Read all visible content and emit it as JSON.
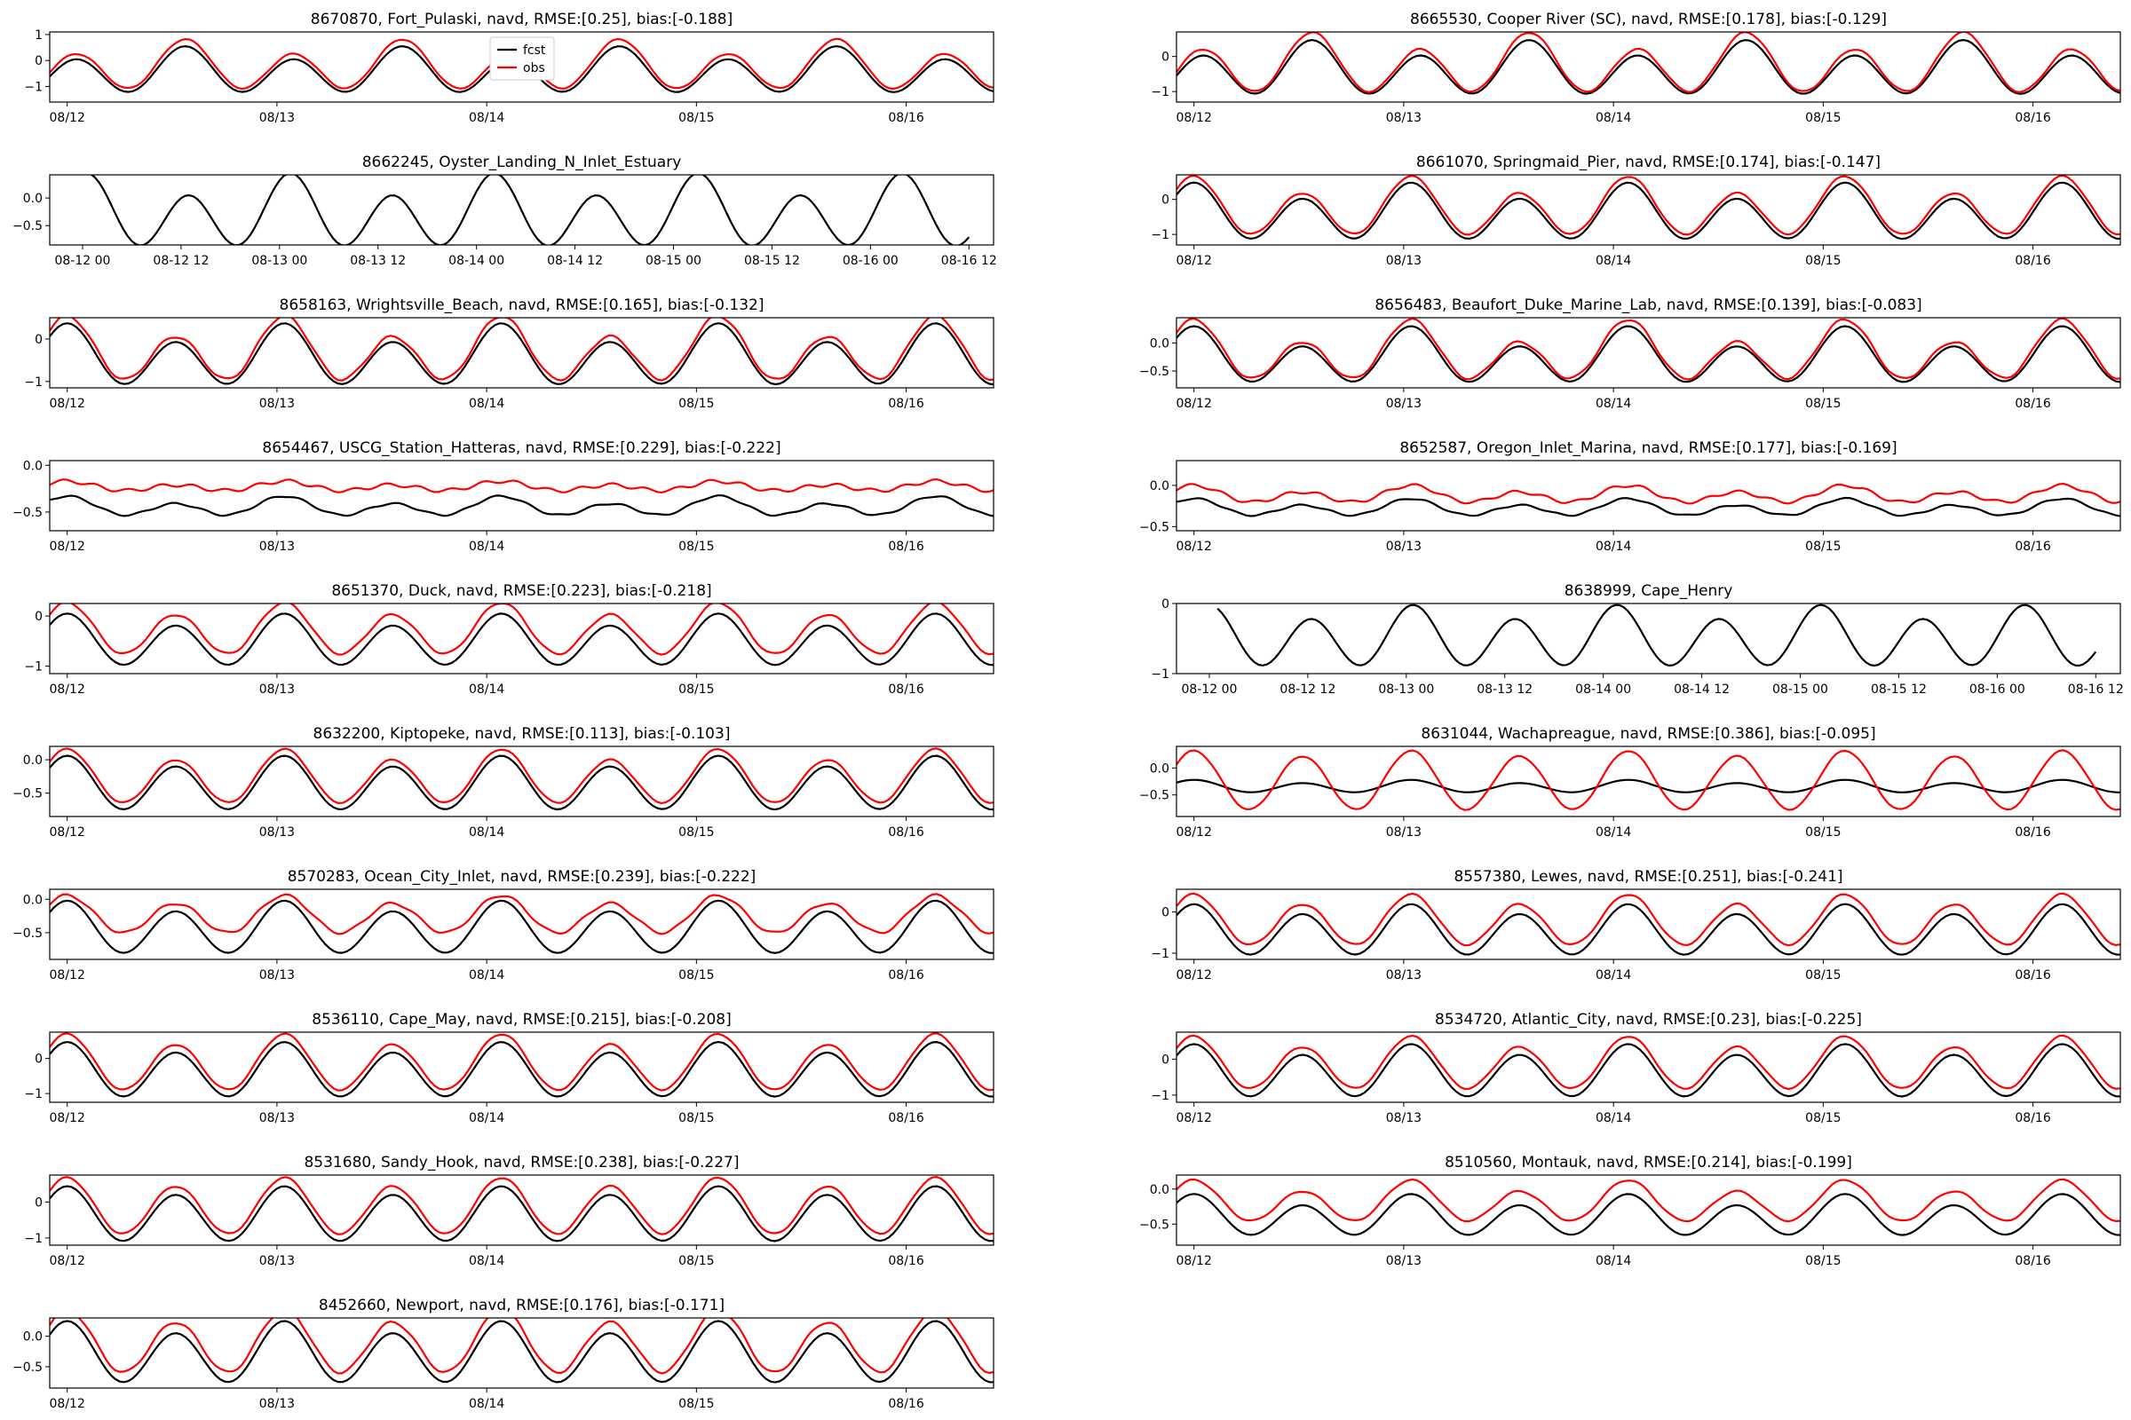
{
  "figure": {
    "legend": {
      "entries": [
        {
          "label": "fcst",
          "color": "#000000"
        },
        {
          "label": "obs",
          "color": "#ff0000"
        }
      ],
      "placement": "upper-right of first panel"
    }
  },
  "chart_data": [
    {
      "type": "line",
      "title": "8670870, Fort_Pulaski, navd, RMSE:[0.25], bias:[-0.188]",
      "ylim": [
        -1.6,
        1.1
      ],
      "yticks": [
        1,
        0,
        -1
      ],
      "ytick_labels": [
        "1",
        "0",
        "−1"
      ],
      "xticks": [
        0,
        24,
        48,
        72,
        96
      ],
      "xtick_labels": [
        "08/12",
        "08/13",
        "08/14",
        "08/15",
        "08/16"
      ],
      "x_range": [
        -2,
        106
      ],
      "phase": 13.5,
      "series": [
        {
          "name": "fcst",
          "color": "#000000",
          "mean": -0.45,
          "amp1": 0.75,
          "amp2": 0.25,
          "noise": 0
        },
        {
          "name": "obs",
          "color": "#ff0000",
          "mean": -0.26,
          "amp1": 0.8,
          "amp2": 0.28,
          "noise": 0.02
        }
      ]
    },
    {
      "type": "line",
      "title": "8665530, Cooper River (SC), navd, RMSE:[0.178], bias:[-0.129]",
      "ylim": [
        -1.3,
        0.7
      ],
      "yticks": [
        0,
        -1
      ],
      "ytick_labels": [
        "0",
        "−1"
      ],
      "xticks": [
        0,
        24,
        48,
        72,
        96
      ],
      "xtick_labels": [
        "08/12",
        "08/13",
        "08/14",
        "08/15",
        "08/16"
      ],
      "x_range": [
        -2,
        106
      ],
      "phase": 13.5,
      "series": [
        {
          "name": "fcst",
          "color": "#000000",
          "mean": -0.4,
          "amp1": 0.65,
          "amp2": 0.22,
          "noise": 0
        },
        {
          "name": "obs",
          "color": "#ff0000",
          "mean": -0.27,
          "amp1": 0.72,
          "amp2": 0.24,
          "noise": 0.02
        }
      ]
    },
    {
      "type": "line",
      "title": "8662245, Oyster_Landing_N_Inlet_Estuary",
      "ylim": [
        -0.85,
        0.42
      ],
      "yticks": [
        0,
        -0.5
      ],
      "ytick_labels": [
        "0.0",
        "−0.5"
      ],
      "xticks": [
        0,
        12,
        24,
        36,
        48,
        60,
        72,
        84,
        96,
        108
      ],
      "xtick_labels": [
        "08-12 00",
        "08-12 12",
        "08-13 00",
        "08-13 12",
        "08-14 00",
        "08-14 12",
        "08-15 00",
        "08-15 12",
        "08-16 00",
        "08-16 12"
      ],
      "x_range": [
        -4,
        111
      ],
      "phase": 0.5,
      "series": [
        {
          "name": "fcst",
          "color": "#000000",
          "mean": -0.3,
          "amp1": 0.55,
          "amp2": 0.2,
          "noise": 0,
          "xstart": 1,
          "xend": 108
        }
      ]
    },
    {
      "type": "line",
      "title": "8661070, Springmaid_Pier, navd, RMSE:[0.174], bias:[-0.147]",
      "ylim": [
        -1.3,
        0.7
      ],
      "yticks": [
        0,
        -1
      ],
      "ytick_labels": [
        "0",
        "−1"
      ],
      "xticks": [
        0,
        24,
        48,
        72,
        96
      ],
      "xtick_labels": [
        "08/12",
        "08/13",
        "08/14",
        "08/15",
        "08/16"
      ],
      "x_range": [
        -2,
        106
      ],
      "phase": 0,
      "series": [
        {
          "name": "fcst",
          "color": "#000000",
          "mean": -0.43,
          "amp1": 0.68,
          "amp2": 0.23,
          "noise": 0
        },
        {
          "name": "obs",
          "color": "#ff0000",
          "mean": -0.28,
          "amp1": 0.7,
          "amp2": 0.24,
          "noise": 0.02
        }
      ]
    },
    {
      "type": "line",
      "title": "8658163, Wrightsville_Beach, navd, RMSE:[0.165], bias:[-0.132]",
      "ylim": [
        -1.15,
        0.5
      ],
      "yticks": [
        0,
        -1
      ],
      "ytick_labels": [
        "0",
        "−1"
      ],
      "xticks": [
        0,
        24,
        48,
        72,
        96
      ],
      "xtick_labels": [
        "08/12",
        "08/13",
        "08/14",
        "08/15",
        "08/16"
      ],
      "x_range": [
        -2,
        106
      ],
      "phase": 0,
      "series": [
        {
          "name": "fcst",
          "color": "#000000",
          "mean": -0.45,
          "amp1": 0.6,
          "amp2": 0.22,
          "noise": 0
        },
        {
          "name": "obs",
          "color": "#ff0000",
          "mean": -0.32,
          "amp1": 0.62,
          "amp2": 0.24,
          "noise": 0.03
        }
      ]
    },
    {
      "type": "line",
      "title": "8656483, Beaufort_Duke_Marine_Lab, navd, RMSE:[0.139], bias:[-0.083]",
      "ylim": [
        -0.8,
        0.45
      ],
      "yticks": [
        0,
        -0.5
      ],
      "ytick_labels": [
        "0.0",
        "−0.5"
      ],
      "xticks": [
        0,
        24,
        48,
        72,
        96
      ],
      "xtick_labels": [
        "08/12",
        "08/13",
        "08/14",
        "08/15",
        "08/16"
      ],
      "x_range": [
        -2,
        106
      ],
      "phase": 0,
      "series": [
        {
          "name": "fcst",
          "color": "#000000",
          "mean": -0.28,
          "amp1": 0.4,
          "amp2": 0.18,
          "noise": 0
        },
        {
          "name": "obs",
          "color": "#ff0000",
          "mean": -0.2,
          "amp1": 0.42,
          "amp2": 0.2,
          "noise": 0.02
        }
      ]
    },
    {
      "type": "line",
      "title": "8654467, USCG_Station_Hatteras, navd, RMSE:[0.229], bias:[-0.222]",
      "ylim": [
        -0.7,
        0.05
      ],
      "yticks": [
        0,
        -0.5
      ],
      "ytick_labels": [
        "0.0",
        "−0.5"
      ],
      "xticks": [
        0,
        24,
        48,
        72,
        96
      ],
      "xtick_labels": [
        "08/12",
        "08/13",
        "08/14",
        "08/15",
        "08/16"
      ],
      "x_range": [
        -2,
        106
      ],
      "phase": 0,
      "series": [
        {
          "name": "fcst",
          "color": "#000000",
          "mean": -0.45,
          "amp1": 0.08,
          "amp2": 0.04,
          "noise": 0.01
        },
        {
          "name": "obs",
          "color": "#ff0000",
          "mean": -0.23,
          "amp1": 0.04,
          "amp2": 0.02,
          "noise": 0.02
        }
      ]
    },
    {
      "type": "line",
      "title": "8652587, Oregon_Inlet_Marina, navd, RMSE:[0.177], bias:[-0.169]",
      "ylim": [
        -0.55,
        0.3
      ],
      "yticks": [
        0,
        -0.5
      ],
      "ytick_labels": [
        "0.0",
        "−0.5"
      ],
      "xticks": [
        0,
        24,
        48,
        72,
        96
      ],
      "xtick_labels": [
        "08/12",
        "08/13",
        "08/14",
        "08/15",
        "08/16"
      ],
      "x_range": [
        -2,
        106
      ],
      "phase": 0,
      "series": [
        {
          "name": "fcst",
          "color": "#000000",
          "mean": -0.28,
          "amp1": 0.08,
          "amp2": 0.04,
          "noise": 0.01
        },
        {
          "name": "obs",
          "color": "#ff0000",
          "mean": -0.12,
          "amp1": 0.08,
          "amp2": 0.04,
          "noise": 0.02
        }
      ]
    },
    {
      "type": "line",
      "title": "8651370, Duck, navd, RMSE:[0.223], bias:[-0.218]",
      "ylim": [
        -1.15,
        0.25
      ],
      "yticks": [
        0,
        -1
      ],
      "ytick_labels": [
        "0",
        "−1"
      ],
      "xticks": [
        0,
        24,
        48,
        72,
        96
      ],
      "xtick_labels": [
        "08/12",
        "08/13",
        "08/14",
        "08/15",
        "08/16"
      ],
      "x_range": [
        -2,
        106
      ],
      "phase": 0,
      "series": [
        {
          "name": "fcst",
          "color": "#000000",
          "mean": -0.52,
          "amp1": 0.45,
          "amp2": 0.12,
          "noise": 0
        },
        {
          "name": "obs",
          "color": "#ff0000",
          "mean": -0.3,
          "amp1": 0.45,
          "amp2": 0.12,
          "noise": 0.02
        }
      ]
    },
    {
      "type": "line",
      "title": "8638999, Cape_Henry",
      "ylim": [
        -1,
        0
      ],
      "yticks": [
        0,
        -1
      ],
      "ytick_labels": [
        "0",
        "−1"
      ],
      "xticks": [
        0,
        12,
        24,
        36,
        48,
        60,
        72,
        84,
        96,
        108
      ],
      "xtick_labels": [
        "08-12 00",
        "08-12 12",
        "08-13 00",
        "08-13 12",
        "08-14 00",
        "08-14 12",
        "08-15 00",
        "08-15 12",
        "08-16 00",
        "08-16 12"
      ],
      "x_range": [
        -4,
        111
      ],
      "phase": 0,
      "series": [
        {
          "name": "fcst",
          "color": "#000000",
          "mean": -0.5,
          "amp1": 0.38,
          "amp2": 0.1,
          "noise": 0,
          "xstart": 1,
          "xend": 108
        }
      ]
    },
    {
      "type": "line",
      "title": "8632200, Kiptopeke, navd, RMSE:[0.113], bias:[-0.103]",
      "ylim": [
        -0.85,
        0.2
      ],
      "yticks": [
        0,
        -0.5
      ],
      "ytick_labels": [
        "0.0",
        "−0.5"
      ],
      "xticks": [
        0,
        24,
        48,
        72,
        96
      ],
      "xtick_labels": [
        "08/12",
        "08/13",
        "08/14",
        "08/15",
        "08/16"
      ],
      "x_range": [
        -2,
        106
      ],
      "phase": 0,
      "series": [
        {
          "name": "fcst",
          "color": "#000000",
          "mean": -0.38,
          "amp1": 0.36,
          "amp2": 0.08,
          "noise": 0
        },
        {
          "name": "obs",
          "color": "#ff0000",
          "mean": -0.28,
          "amp1": 0.36,
          "amp2": 0.08,
          "noise": 0.01
        }
      ]
    },
    {
      "type": "line",
      "title": "8631044, Wachapreague, navd, RMSE:[0.386], bias:[-0.095]",
      "ylim": [
        -0.9,
        0.4
      ],
      "yticks": [
        0,
        -0.5
      ],
      "ytick_labels": [
        "0.0",
        "−0.5"
      ],
      "xticks": [
        0,
        24,
        48,
        72,
        96
      ],
      "xtick_labels": [
        "08/12",
        "08/13",
        "08/14",
        "08/15",
        "08/16"
      ],
      "x_range": [
        -2,
        106
      ],
      "phase": 0,
      "series": [
        {
          "name": "fcst",
          "color": "#000000",
          "mean": -0.35,
          "amp1": 0.1,
          "amp2": 0.03,
          "noise": 0
        },
        {
          "name": "obs",
          "color": "#ff0000",
          "mean": -0.25,
          "amp1": 0.52,
          "amp2": 0.05,
          "noise": 0.01
        }
      ]
    },
    {
      "type": "line",
      "title": "8570283, Ocean_City_Inlet, navd, RMSE:[0.239], bias:[-0.222]",
      "ylim": [
        -0.9,
        0.15
      ],
      "yticks": [
        0,
        -0.5
      ],
      "ytick_labels": [
        "0.0",
        "−0.5"
      ],
      "xticks": [
        0,
        24,
        48,
        72,
        96
      ],
      "xtick_labels": [
        "08/12",
        "08/13",
        "08/14",
        "08/15",
        "08/16"
      ],
      "x_range": [
        -2,
        106
      ],
      "phase": 0,
      "series": [
        {
          "name": "fcst",
          "color": "#000000",
          "mean": -0.45,
          "amp1": 0.35,
          "amp2": 0.08,
          "noise": 0
        },
        {
          "name": "obs",
          "color": "#ff0000",
          "mean": -0.25,
          "amp1": 0.25,
          "amp2": 0.06,
          "noise": 0.02
        }
      ]
    },
    {
      "type": "line",
      "title": "8557380, Lewes, navd, RMSE:[0.251], bias:[-0.241]",
      "ylim": [
        -1.15,
        0.55
      ],
      "yticks": [
        0,
        -1
      ],
      "ytick_labels": [
        "0",
        "−1"
      ],
      "xticks": [
        0,
        24,
        48,
        72,
        96
      ],
      "xtick_labels": [
        "08/12",
        "08/13",
        "08/14",
        "08/15",
        "08/16"
      ],
      "x_range": [
        -2,
        106
      ],
      "phase": 0,
      "series": [
        {
          "name": "fcst",
          "color": "#000000",
          "mean": -0.48,
          "amp1": 0.55,
          "amp2": 0.12,
          "noise": 0
        },
        {
          "name": "obs",
          "color": "#ff0000",
          "mean": -0.24,
          "amp1": 0.55,
          "amp2": 0.12,
          "noise": 0.02
        }
      ]
    },
    {
      "type": "line",
      "title": "8536110, Cape_May, navd, RMSE:[0.215], bias:[-0.208]",
      "ylim": [
        -1.25,
        0.75
      ],
      "yticks": [
        0,
        -1
      ],
      "ytick_labels": [
        "0",
        "−1"
      ],
      "xticks": [
        0,
        24,
        48,
        72,
        96
      ],
      "xtick_labels": [
        "08/12",
        "08/13",
        "08/14",
        "08/15",
        "08/16"
      ],
      "x_range": [
        -2,
        106
      ],
      "phase": 0,
      "series": [
        {
          "name": "fcst",
          "color": "#000000",
          "mean": -0.38,
          "amp1": 0.7,
          "amp2": 0.15,
          "noise": 0
        },
        {
          "name": "obs",
          "color": "#ff0000",
          "mean": -0.17,
          "amp1": 0.72,
          "amp2": 0.15,
          "noise": 0.02
        }
      ]
    },
    {
      "type": "line",
      "title": "8534720, Atlantic_City, navd, RMSE:[0.23], bias:[-0.225]",
      "ylim": [
        -1.2,
        0.75
      ],
      "yticks": [
        0,
        -1
      ],
      "ytick_labels": [
        "0",
        "−1"
      ],
      "xticks": [
        0,
        24,
        48,
        72,
        96
      ],
      "xtick_labels": [
        "08/12",
        "08/13",
        "08/14",
        "08/15",
        "08/16"
      ],
      "x_range": [
        -2,
        106
      ],
      "phase": 0,
      "series": [
        {
          "name": "fcst",
          "color": "#000000",
          "mean": -0.38,
          "amp1": 0.65,
          "amp2": 0.15,
          "noise": 0
        },
        {
          "name": "obs",
          "color": "#ff0000",
          "mean": -0.16,
          "amp1": 0.65,
          "amp2": 0.15,
          "noise": 0.02
        }
      ]
    },
    {
      "type": "line",
      "title": "8531680, Sandy_Hook, navd, RMSE:[0.238], bias:[-0.227]",
      "ylim": [
        -1.2,
        0.75
      ],
      "yticks": [
        0,
        -1
      ],
      "ytick_labels": [
        "0",
        "−1"
      ],
      "xticks": [
        0,
        24,
        48,
        72,
        96
      ],
      "xtick_labels": [
        "08/12",
        "08/13",
        "08/14",
        "08/15",
        "08/16"
      ],
      "x_range": [
        -2,
        106
      ],
      "phase": 0,
      "series": [
        {
          "name": "fcst",
          "color": "#000000",
          "mean": -0.38,
          "amp1": 0.7,
          "amp2": 0.12,
          "noise": 0
        },
        {
          "name": "obs",
          "color": "#ff0000",
          "mean": -0.16,
          "amp1": 0.72,
          "amp2": 0.12,
          "noise": 0.02
        }
      ]
    },
    {
      "type": "line",
      "title": "8510560, Montauk, navd, RMSE:[0.214], bias:[-0.199]",
      "ylim": [
        -0.8,
        0.2
      ],
      "yticks": [
        0,
        -0.5
      ],
      "ytick_labels": [
        "0.0",
        "−0.5"
      ],
      "xticks": [
        0,
        24,
        48,
        72,
        96
      ],
      "xtick_labels": [
        "08/12",
        "08/13",
        "08/14",
        "08/15",
        "08/16"
      ],
      "x_range": [
        -2,
        106
      ],
      "phase": 0,
      "series": [
        {
          "name": "fcst",
          "color": "#000000",
          "mean": -0.4,
          "amp1": 0.25,
          "amp2": 0.08,
          "noise": 0
        },
        {
          "name": "obs",
          "color": "#ff0000",
          "mean": -0.2,
          "amp1": 0.25,
          "amp2": 0.08,
          "noise": 0.01
        }
      ]
    },
    {
      "type": "line",
      "title": "8452660, Newport, navd, RMSE:[0.176], bias:[-0.171]",
      "ylim": [
        -0.85,
        0.3
      ],
      "yticks": [
        0,
        -0.5
      ],
      "ytick_labels": [
        "0.0",
        "−0.5"
      ],
      "xticks": [
        0,
        24,
        48,
        72,
        96
      ],
      "xtick_labels": [
        "08/12",
        "08/13",
        "08/14",
        "08/15",
        "08/16"
      ],
      "x_range": [
        -2,
        106
      ],
      "phase": 0,
      "series": [
        {
          "name": "fcst",
          "color": "#000000",
          "mean": -0.3,
          "amp1": 0.45,
          "amp2": 0.1,
          "noise": 0
        },
        {
          "name": "obs",
          "color": "#ff0000",
          "mean": -0.13,
          "amp1": 0.46,
          "amp2": 0.1,
          "noise": 0.02
        }
      ]
    }
  ]
}
